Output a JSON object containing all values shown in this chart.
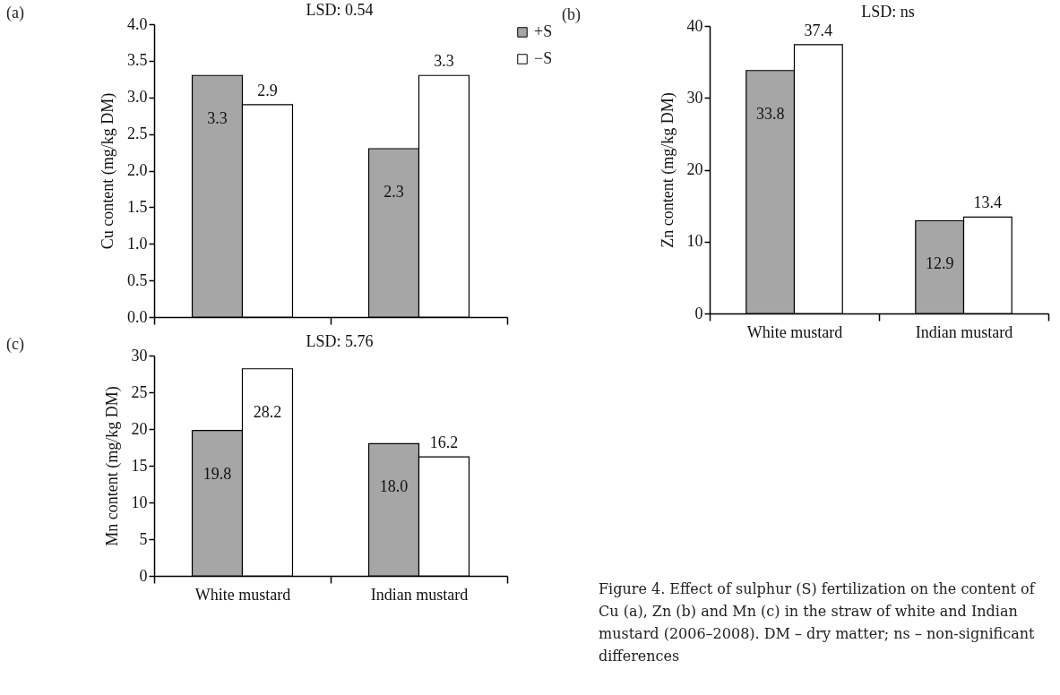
{
  "chart_data": [
    {
      "type": "bar",
      "title": "LSD: 0.54",
      "ylabel": "Cu content (mg/kg DM)",
      "categories": [
        null,
        null
      ],
      "series": [
        {
          "name": "+S",
          "color": "#a6a6a6",
          "values": [
            3.3,
            2.3
          ],
          "value_labels": [
            "3.3",
            "2.3"
          ]
        },
        {
          "name": "−S",
          "color": "#ffffff",
          "values": [
            2.9,
            3.3
          ],
          "value_labels": [
            "2.9",
            "3.3"
          ]
        }
      ],
      "ylim": [
        0,
        4
      ],
      "yticks": [
        {
          "value": 0,
          "label": "0.0"
        },
        {
          "value": 0.5,
          "label": "0.5"
        },
        {
          "value": 1,
          "label": "1.0"
        },
        {
          "value": 1.5,
          "label": "1.5"
        },
        {
          "value": 2,
          "label": "2.0"
        },
        {
          "value": 2.5,
          "label": "2.5"
        },
        {
          "value": 3,
          "label": "3.0"
        },
        {
          "value": 3.5,
          "label": "3.5"
        },
        {
          "value": 4,
          "label": "4.0"
        }
      ],
      "legend": "top right",
      "tick_labels": "y",
      "annotations": [
        "(a)"
      ]
    },
    {
      "type": "bar",
      "title": "LSD: ns",
      "ylabel": "Zn content  (mg/kg DM)",
      "categories": [
        "White mustard",
        "Indian mustard"
      ],
      "series": [
        {
          "color": "#a6a6a6",
          "values": [
            33.8,
            12.9
          ],
          "value_labels": [
            "33.8",
            "12.9"
          ]
        },
        {
          "color": "#ffffff",
          "values": [
            37.4,
            13.4
          ],
          "value_labels": [
            "37.4",
            "13.4"
          ]
        }
      ],
      "ylim": [
        0,
        40
      ],
      "yticks": [
        0,
        10,
        20,
        30,
        40
      ],
      "annotations": [
        "(b)"
      ]
    },
    {
      "type": "bar",
      "title": "LSD: 5.76",
      "ylabel": "Mn content (mg/kg DM)",
      "categories": [
        "White mustard",
        "Indian mustard"
      ],
      "series": [
        {
          "color": "#a6a6a6",
          "values": [
            19.8,
            18.0
          ],
          "value_labels": [
            "19.8",
            "18.0"
          ]
        },
        {
          "color": "#ffffff",
          "values": [
            28.2,
            16.2
          ],
          "value_labels": [
            "28.2",
            "16.2"
          ]
        }
      ],
      "ylim": [
        0,
        30
      ],
      "yticks": [
        0,
        5,
        10,
        15,
        20,
        25,
        30
      ],
      "annotations": [
        "(c)"
      ]
    },
    {
      "type": "other",
      "annotations": [
        "Figure 4. Effect of sulphur (S) fertilization on the content of Cu (a), Zn (b) and Mn (c) in the straw of white and Indian mustard (2006–2008). DM – dry matter; ns – non-significant differences"
      ]
    }
  ]
}
